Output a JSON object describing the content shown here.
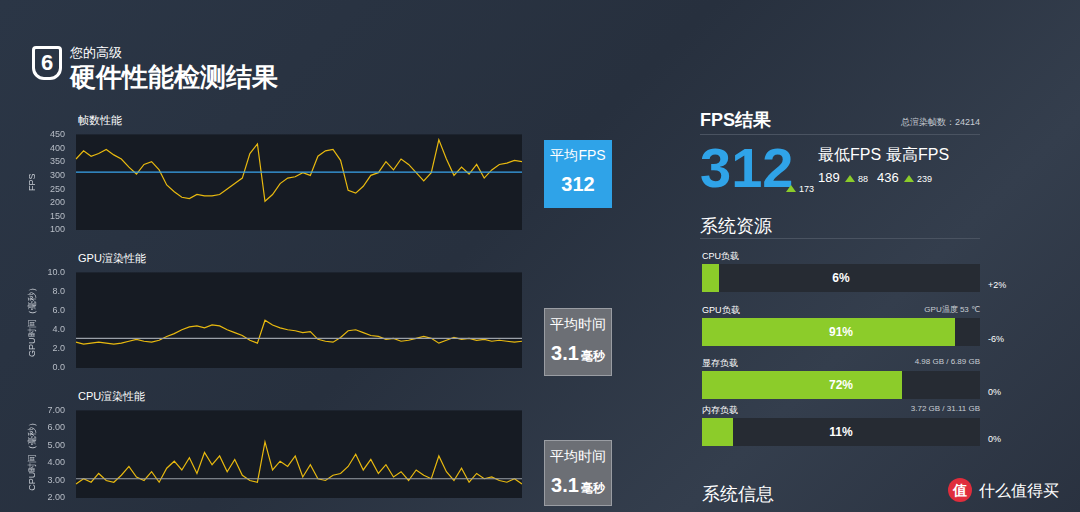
{
  "header": {
    "badge": "6",
    "subtitle": "您的高级",
    "title": "硬件性能检测结果"
  },
  "chart_data": [
    {
      "type": "line",
      "title": "帧数性能",
      "y_label": "FPS",
      "categories": [
        null,
        null,
        null,
        null,
        null,
        null,
        null,
        null,
        null,
        null,
        null,
        null,
        null,
        null,
        null,
        null,
        null,
        null,
        null,
        null,
        null,
        null,
        null,
        null,
        null,
        null,
        null,
        null,
        null,
        null,
        null,
        null,
        null,
        null,
        null,
        null,
        null,
        null,
        null,
        null,
        null,
        null,
        null,
        null,
        null,
        null,
        null,
        null,
        null,
        null,
        null,
        null,
        null,
        null,
        null,
        null,
        null,
        null,
        null,
        null
      ],
      "values": [
        360,
        390,
        370,
        380,
        395,
        375,
        360,
        330,
        305,
        340,
        350,
        320,
        265,
        240,
        220,
        215,
        230,
        225,
        225,
        230,
        250,
        270,
        290,
        380,
        415,
        205,
        230,
        270,
        290,
        295,
        310,
        300,
        370,
        390,
        395,
        355,
        245,
        235,
        260,
        300,
        310,
        350,
        320,
        360,
        340,
        310,
        280,
        310,
        430,
        360,
        300,
        330,
        305,
        340,
        290,
        320,
        340,
        345,
        355,
        350
      ],
      "color": "#e8b90f",
      "ylim": [
        100,
        450
      ],
      "yticks": [
        100,
        150,
        200,
        250,
        300,
        350,
        400,
        450
      ],
      "grid": false,
      "tick_labels": "y",
      "average": 312,
      "average_label": "平均FPS"
    },
    {
      "type": "line",
      "title": "GPU渲染性能",
      "y_label": "GPU时间（毫秒）",
      "categories": [
        null,
        null,
        null,
        null,
        null,
        null,
        null,
        null,
        null,
        null,
        null,
        null,
        null,
        null,
        null,
        null,
        null,
        null,
        null,
        null,
        null,
        null,
        null,
        null,
        null,
        null,
        null,
        null,
        null,
        null,
        null,
        null,
        null,
        null,
        null,
        null,
        null,
        null,
        null,
        null,
        null,
        null,
        null,
        null,
        null,
        null,
        null,
        null,
        null,
        null,
        null,
        null,
        null,
        null,
        null,
        null,
        null,
        null,
        null,
        null
      ],
      "values": [
        2.7,
        2.5,
        2.6,
        2.7,
        2.6,
        2.5,
        2.6,
        2.8,
        3.0,
        2.8,
        2.7,
        2.9,
        3.3,
        3.6,
        4.0,
        4.3,
        4.4,
        4.2,
        4.5,
        4.4,
        4.0,
        3.7,
        3.4,
        2.9,
        2.6,
        5.0,
        4.5,
        4.2,
        4.0,
        3.9,
        3.7,
        3.8,
        3.0,
        2.8,
        2.7,
        3.2,
        3.9,
        4.0,
        3.7,
        3.4,
        3.3,
        3.0,
        3.1,
        2.8,
        2.9,
        3.1,
        3.3,
        3.1,
        2.6,
        2.9,
        3.2,
        3.0,
        3.1,
        2.9,
        3.0,
        2.8,
        2.9,
        2.8,
        2.7,
        2.8
      ],
      "color": "#e8b90f",
      "ylim": [
        0,
        10
      ],
      "yticks": [
        {
          "value": 0,
          "label": "0.0"
        },
        {
          "value": 2,
          "label": "2.0"
        },
        {
          "value": 4,
          "label": "4.0"
        },
        {
          "value": 6,
          "label": "6.0"
        },
        {
          "value": 8,
          "label": "8.0"
        },
        {
          "value": 10,
          "label": "10.0"
        }
      ],
      "grid": false,
      "tick_labels": "y",
      "average": 3.1,
      "average_label": "平均时间",
      "average_unit": "毫秒"
    },
    {
      "type": "line",
      "title": "CPU渲染性能",
      "y_label": "CPU时间（毫秒）",
      "categories": [
        null,
        null,
        null,
        null,
        null,
        null,
        null,
        null,
        null,
        null,
        null,
        null,
        null,
        null,
        null,
        null,
        null,
        null,
        null,
        null,
        null,
        null,
        null,
        null,
        null,
        null,
        null,
        null,
        null,
        null,
        null,
        null,
        null,
        null,
        null,
        null,
        null,
        null,
        null,
        null,
        null,
        null,
        null,
        null,
        null,
        null,
        null,
        null,
        null,
        null,
        null,
        null,
        null,
        null,
        null,
        null,
        null,
        null,
        null,
        null
      ],
      "values": [
        2.8,
        3.1,
        2.9,
        3.4,
        3.0,
        2.9,
        3.3,
        3.8,
        3.2,
        3.0,
        3.5,
        2.9,
        3.7,
        4.1,
        3.6,
        4.3,
        3.4,
        4.6,
        3.9,
        4.4,
        3.5,
        4.2,
        3.3,
        3.0,
        2.9,
        5.2,
        3.6,
        4.1,
        3.8,
        4.4,
        3.2,
        3.9,
        3.1,
        3.0,
        3.3,
        3.4,
        3.8,
        4.5,
        3.6,
        4.2,
        3.4,
        3.9,
        3.2,
        3.5,
        3.0,
        3.6,
        3.3,
        3.1,
        4.4,
        3.5,
        3.0,
        3.7,
        2.9,
        3.4,
        3.1,
        3.2,
        3.0,
        2.9,
        3.1,
        2.8
      ],
      "color": "#e8b90f",
      "ylim": [
        2,
        7
      ],
      "yticks": [
        {
          "value": 2,
          "label": "2.00"
        },
        {
          "value": 3,
          "label": "3.00"
        },
        {
          "value": 4,
          "label": "4.00"
        },
        {
          "value": 5,
          "label": "5.00"
        },
        {
          "value": 6,
          "label": "6.00"
        },
        {
          "value": 7,
          "label": "7.00"
        }
      ],
      "grid": false,
      "tick_labels": "y",
      "average": 3.1,
      "average_label": "平均时间",
      "average_unit": "毫秒"
    }
  ],
  "fps_result": {
    "title": "FPS结果",
    "total_frames_label": "总渲染帧数：24214",
    "average": 312,
    "average_change": 173,
    "min_label": "最低FPS",
    "min": 189,
    "min_change": 88,
    "max_label": "最高FPS",
    "max": 436,
    "max_change": 239
  },
  "system_resources": {
    "title": "系统资源",
    "rows": [
      {
        "label": "CPU负载",
        "value": 6,
        "value_label": "6%",
        "change": "+2%"
      },
      {
        "label": "GPU负载",
        "info": "GPU温度 53 ℃",
        "value": 91,
        "value_label": "91%",
        "change": "-6%"
      },
      {
        "label": "显存负载",
        "info": "4.98 GB / 6.89 GB",
        "value": 72,
        "value_label": "72%",
        "change": "0%"
      },
      {
        "label": "内存负载",
        "info": "3.72 GB / 31.11 GB",
        "value": 11,
        "value_label": "11%",
        "change": "0%"
      }
    ]
  },
  "system_info": {
    "title": "系统信息"
  },
  "watermark": {
    "icon": "值",
    "text": "什么值得买"
  }
}
